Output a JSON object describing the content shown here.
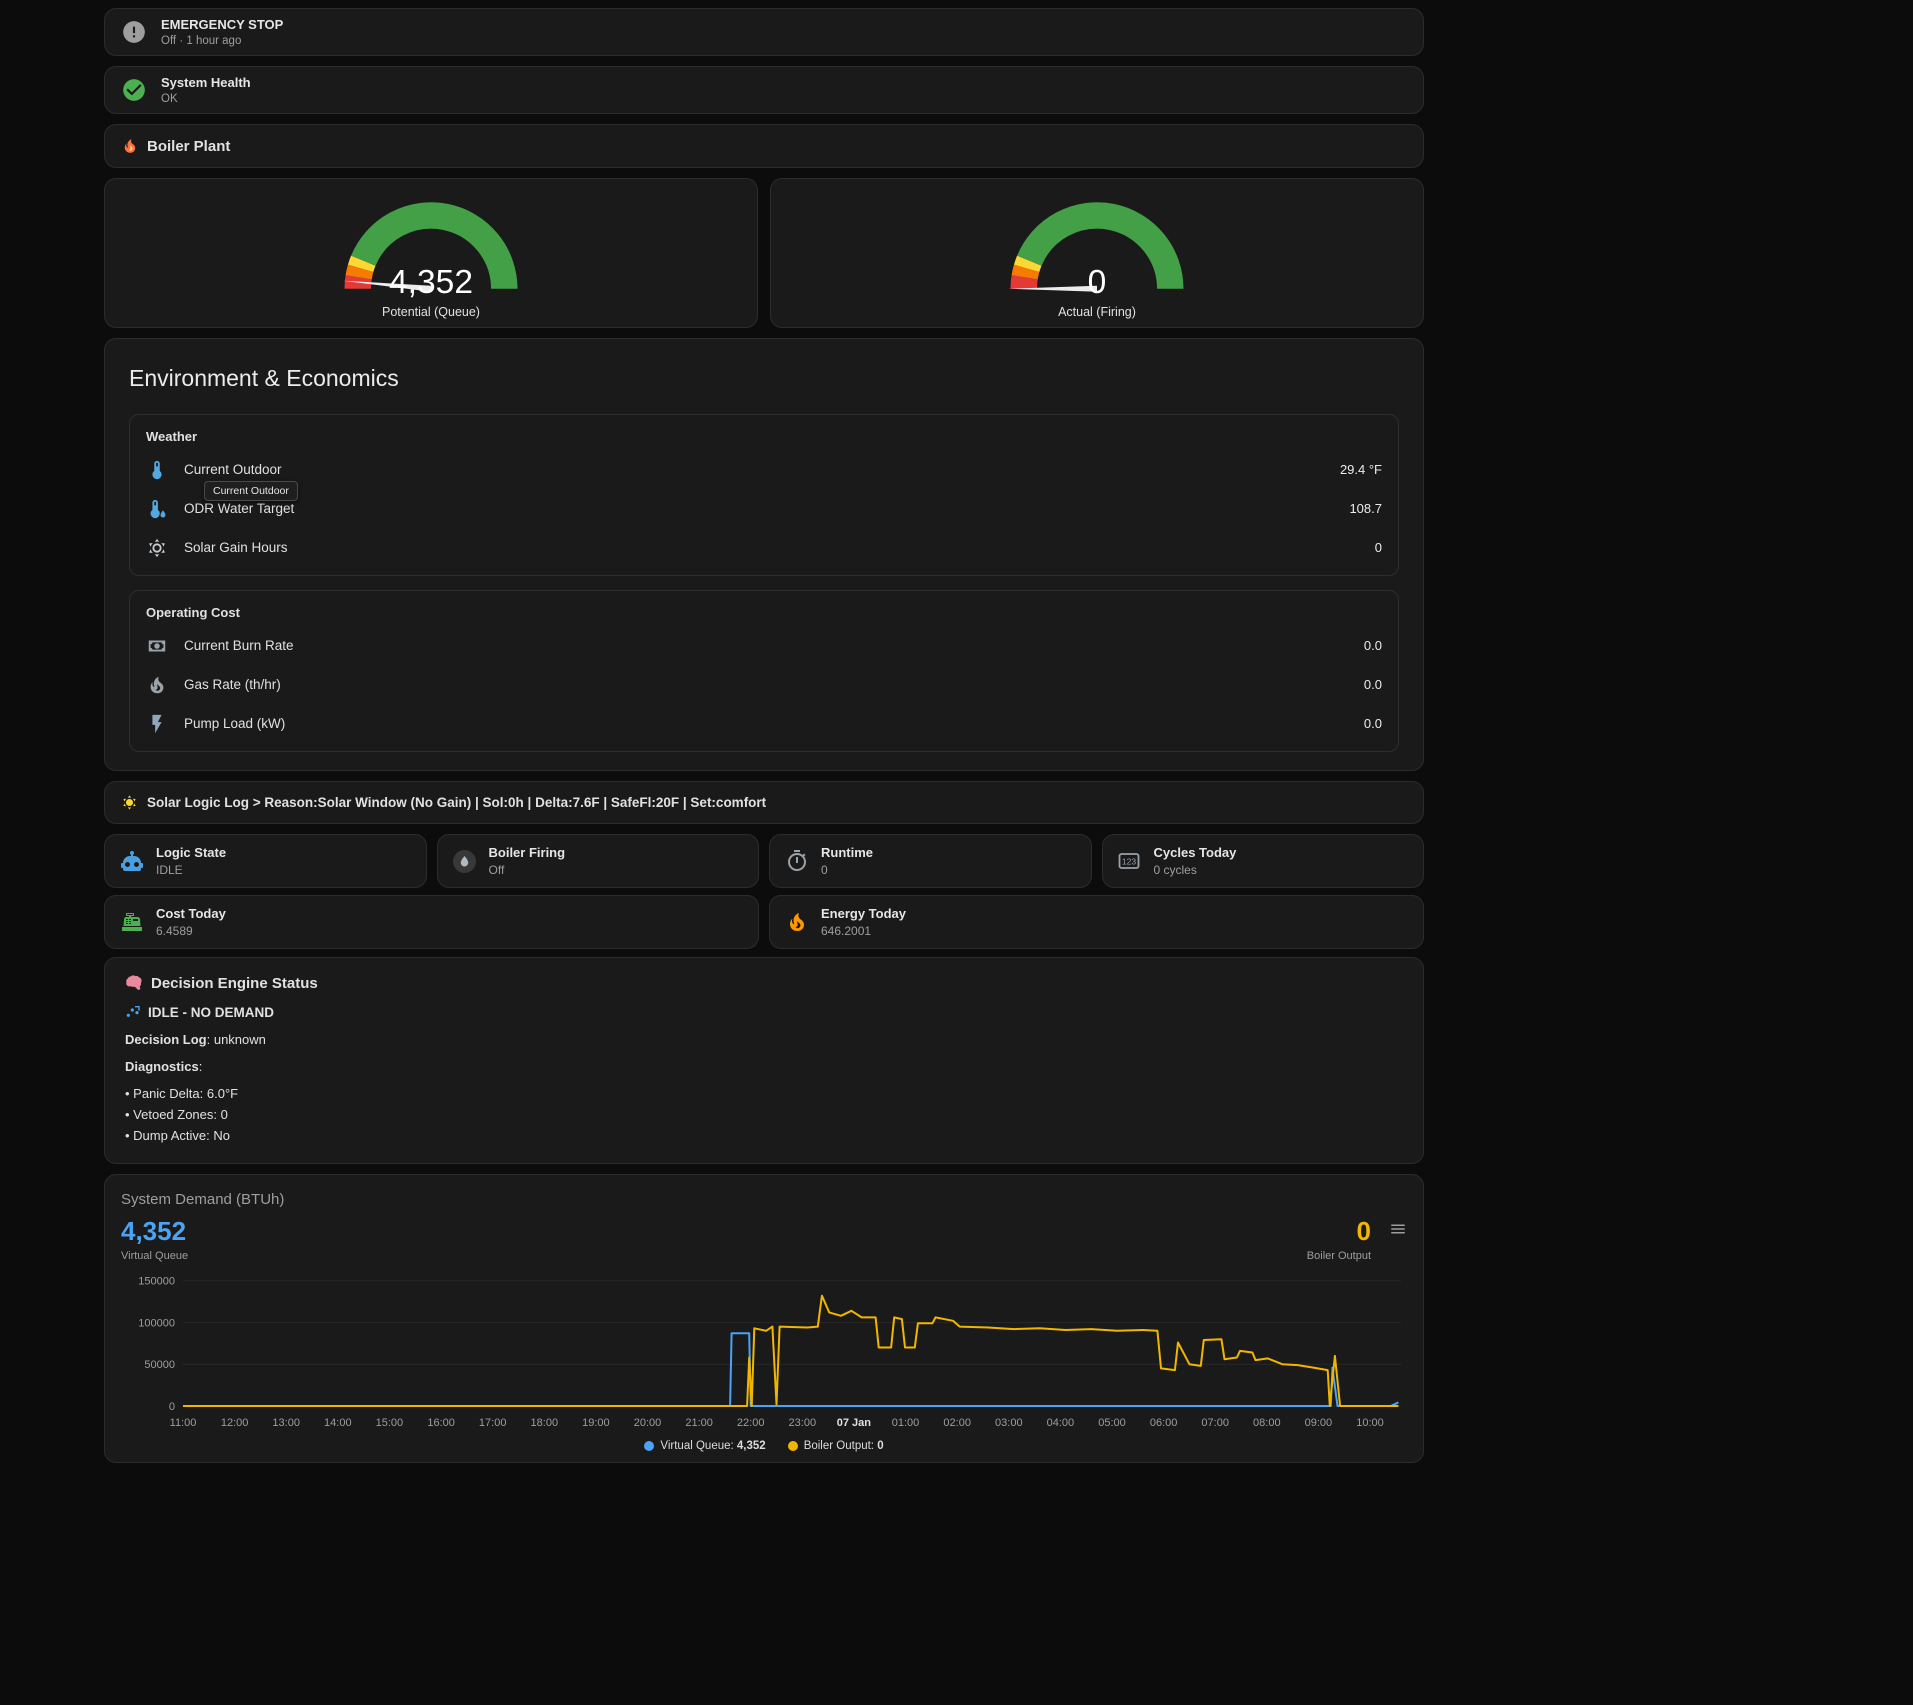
{
  "theme": {
    "background": "#0c0c0c",
    "card": "#1a1a1a",
    "border": "#2c2c2c",
    "accent_blue": "#4aa3f5",
    "accent_yellow": "#f2b600",
    "green": "#4caf50",
    "orange": "#ff9800"
  },
  "alerts": [
    {
      "title": "EMERGENCY STOP",
      "subtitle": "Off · 1 hour ago",
      "icon": "alert-circle"
    },
    {
      "title": "System Health",
      "subtitle": "OK",
      "icon": "check-circle"
    }
  ],
  "plant_header": {
    "title": "Boiler Plant",
    "icon": "flame"
  },
  "gauge_style": {
    "segments": [
      {
        "from": 0,
        "to": 0.05,
        "color": "#e53935"
      },
      {
        "from": 0.05,
        "to": 0.09,
        "color": "#f57c00"
      },
      {
        "from": 0.09,
        "to": 0.125,
        "color": "#fdd835"
      },
      {
        "from": 0.125,
        "to": 1,
        "color": "#43a047"
      }
    ],
    "needle_color": "#ececec"
  },
  "gauges": [
    {
      "value": 4352,
      "max": 150000,
      "value_display": "4,352",
      "label": "Potential (Queue)"
    },
    {
      "value": 0,
      "max": 150000,
      "value_display": "0",
      "label": "Actual (Firing)"
    }
  ],
  "environment": {
    "title": "Environment & Economics",
    "weather": {
      "header": "Weather",
      "tooltip": "Current Outdoor",
      "rows": [
        {
          "icon": "thermometer",
          "label": "Current Outdoor",
          "value": "29.4 °F"
        },
        {
          "icon": "thermometer-water",
          "label": "ODR Water Target",
          "value": "108.7"
        },
        {
          "icon": "sun",
          "label": "Solar Gain Hours",
          "value": "0"
        }
      ]
    },
    "operating_cost": {
      "header": "Operating Cost",
      "rows": [
        {
          "icon": "cash",
          "label": "Current Burn Rate",
          "value": "0.0"
        },
        {
          "icon": "fire",
          "label": "Gas Rate (th/hr)",
          "value": "0.0"
        },
        {
          "icon": "lightning",
          "label": "Pump Load (kW)",
          "value": "0.0"
        }
      ]
    }
  },
  "solar_log": {
    "icon": "sun-emoji",
    "text": "Solar Logic Log > Reason:Solar Window (No Gain) | Sol:0h | Delta:7.6F | SafeFl:20F | Set:comfort"
  },
  "stats": [
    {
      "icon": "robot",
      "title": "Logic State",
      "value": "IDLE"
    },
    {
      "icon": "boiler-drop",
      "title": "Boiler Firing",
      "value": "Off"
    },
    {
      "icon": "timer",
      "title": "Runtime",
      "value": "0"
    },
    {
      "icon": "counter",
      "title": "Cycles Today",
      "value": "0 cycles"
    }
  ],
  "totals": [
    {
      "icon": "cash-register",
      "title": "Cost Today",
      "value": "6.4589"
    },
    {
      "icon": "fire-orange",
      "title": "Energy Today",
      "value": "646.2001"
    }
  ],
  "decision": {
    "title": "Decision Engine Status",
    "title_icon": "brain",
    "status_icon": "idle-scatter",
    "status": "IDLE - NO DEMAND",
    "log_label": "Decision Log",
    "log_value": ": unknown",
    "diag_label": "Diagnostics",
    "diag_colon": ":",
    "items": [
      "• Panic Delta: 6.0°F",
      "• Vetoed Zones: 0",
      "• Dump Active: No"
    ]
  },
  "chart_data": {
    "type": "line",
    "title": "System Demand (BTUh)",
    "header": {
      "left": {
        "value": "4,352",
        "label": "Virtual Queue"
      },
      "right": {
        "value": "0",
        "label": "Boiler Output"
      }
    },
    "xlim": [
      0,
      23.6
    ],
    "ylim": [
      0,
      158000
    ],
    "grid": true,
    "legend_position": "bottom",
    "y_ticks": [
      {
        "v": 0,
        "label": "0"
      },
      {
        "v": 50000,
        "label": "50000"
      },
      {
        "v": 100000,
        "label": "100000"
      },
      {
        "v": 150000,
        "label": "150000"
      }
    ],
    "x_ticks": [
      {
        "h": 0,
        "label": "11:00"
      },
      {
        "h": 1,
        "label": "12:00"
      },
      {
        "h": 2,
        "label": "13:00"
      },
      {
        "h": 3,
        "label": "14:00"
      },
      {
        "h": 4,
        "label": "15:00"
      },
      {
        "h": 5,
        "label": "16:00"
      },
      {
        "h": 6,
        "label": "17:00"
      },
      {
        "h": 7,
        "label": "18:00"
      },
      {
        "h": 8,
        "label": "19:00"
      },
      {
        "h": 9,
        "label": "20:00"
      },
      {
        "h": 10,
        "label": "21:00"
      },
      {
        "h": 11,
        "label": "22:00"
      },
      {
        "h": 12,
        "label": "23:00"
      },
      {
        "h": 13,
        "label": "07 Jan",
        "emphasis": true
      },
      {
        "h": 14,
        "label": "01:00"
      },
      {
        "h": 15,
        "label": "02:00"
      },
      {
        "h": 16,
        "label": "03:00"
      },
      {
        "h": 17,
        "label": "04:00"
      },
      {
        "h": 18,
        "label": "05:00"
      },
      {
        "h": 19,
        "label": "06:00"
      },
      {
        "h": 20,
        "label": "07:00"
      },
      {
        "h": 21,
        "label": "08:00"
      },
      {
        "h": 22,
        "label": "09:00"
      },
      {
        "h": 23,
        "label": "10:00"
      }
    ],
    "series": [
      {
        "name": "Virtual Queue",
        "color": "#4aa3f5",
        "current": "4,352",
        "points": [
          [
            0,
            0
          ],
          [
            10.6,
            0
          ],
          [
            10.63,
            87000
          ],
          [
            10.97,
            87000
          ],
          [
            11.0,
            0
          ],
          [
            22.24,
            0
          ],
          [
            22.27,
            46000
          ],
          [
            22.37,
            0
          ],
          [
            23.4,
            0
          ],
          [
            23.55,
            4352
          ]
        ]
      },
      {
        "name": "Boiler Output",
        "color": "#f2b600",
        "current": "0",
        "points": [
          [
            0,
            0
          ],
          [
            10.93,
            0
          ],
          [
            10.97,
            58000
          ],
          [
            11.02,
            0
          ],
          [
            11.07,
            93000
          ],
          [
            11.3,
            90000
          ],
          [
            11.42,
            95000
          ],
          [
            11.5,
            2000
          ],
          [
            11.56,
            95000
          ],
          [
            12.1,
            94000
          ],
          [
            12.3,
            95000
          ],
          [
            12.38,
            132000
          ],
          [
            12.52,
            112000
          ],
          [
            12.75,
            108000
          ],
          [
            12.95,
            114000
          ],
          [
            13.15,
            106000
          ],
          [
            13.42,
            106000
          ],
          [
            13.48,
            70000
          ],
          [
            13.72,
            70000
          ],
          [
            13.78,
            106000
          ],
          [
            13.93,
            104000
          ],
          [
            13.99,
            70000
          ],
          [
            14.18,
            70000
          ],
          [
            14.24,
            99000
          ],
          [
            14.52,
            99000
          ],
          [
            14.58,
            106000
          ],
          [
            14.92,
            102000
          ],
          [
            15.05,
            95000
          ],
          [
            15.6,
            94000
          ],
          [
            16.1,
            92000
          ],
          [
            16.6,
            93000
          ],
          [
            17.1,
            91000
          ],
          [
            17.6,
            92000
          ],
          [
            18.1,
            90000
          ],
          [
            18.6,
            91000
          ],
          [
            18.88,
            90000
          ],
          [
            18.95,
            45000
          ],
          [
            19.22,
            43000
          ],
          [
            19.28,
            76000
          ],
          [
            19.5,
            50000
          ],
          [
            19.72,
            48000
          ],
          [
            19.78,
            79000
          ],
          [
            20.12,
            80000
          ],
          [
            20.18,
            56000
          ],
          [
            20.42,
            58000
          ],
          [
            20.48,
            66000
          ],
          [
            20.72,
            64000
          ],
          [
            20.78,
            55000
          ],
          [
            21.02,
            57000
          ],
          [
            21.3,
            50000
          ],
          [
            21.6,
            49000
          ],
          [
            21.9,
            46000
          ],
          [
            22.18,
            43000
          ],
          [
            22.22,
            0
          ],
          [
            22.32,
            60000
          ],
          [
            22.42,
            0
          ],
          [
            23.55,
            0
          ]
        ]
      }
    ],
    "legend": [
      {
        "label": "Virtual Queue:",
        "value": "4,352",
        "color": "#4aa3f5"
      },
      {
        "label": "Boiler Output:",
        "value": "0",
        "color": "#f2b600"
      }
    ]
  }
}
